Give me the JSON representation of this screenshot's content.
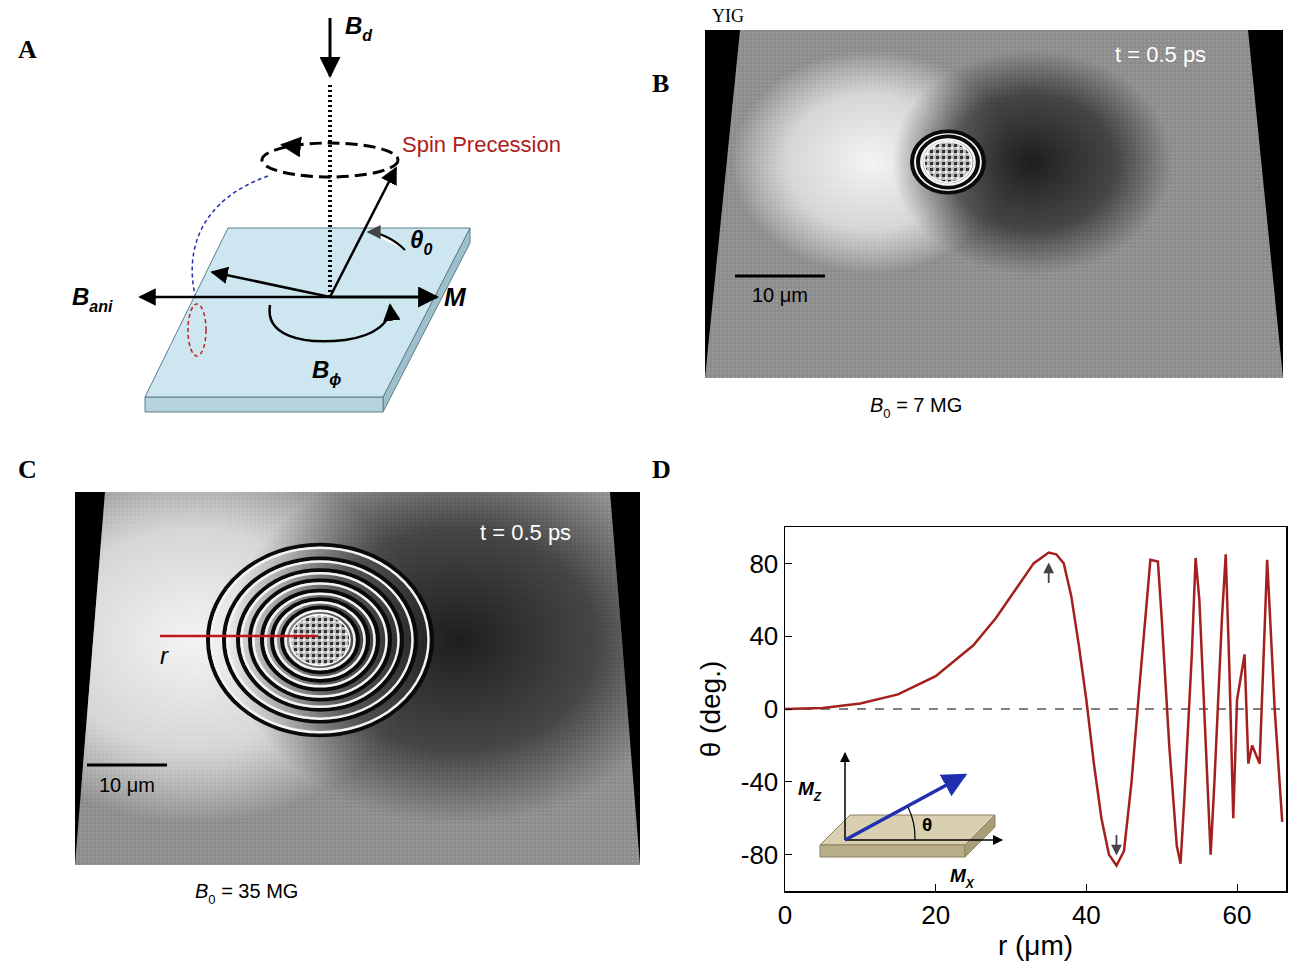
{
  "panels": {
    "A": {
      "label": "A",
      "B_d": {
        "main": "B",
        "sub": "d"
      },
      "precession": "Spin  Precession",
      "theta0": {
        "main": "θ",
        "sub": "0"
      },
      "M": "M",
      "B_ani": {
        "main": "B",
        "sub": "ani"
      },
      "B_phi": {
        "main": "B",
        "sub": "ϕ"
      }
    },
    "B": {
      "label": "B",
      "material": "YIG",
      "time": "t = 0.5 ps",
      "scale_bar": "10 μm",
      "field": {
        "main": "B",
        "sub": "0",
        "rest": " = 7 MG"
      }
    },
    "C": {
      "label": "C",
      "time": "t = 0.5 ps",
      "scale_bar": "10 μm",
      "field": {
        "main": "B",
        "sub": "0",
        "rest": " = 35 MG"
      },
      "radius_label": "r"
    }
  },
  "chart_data": {
    "label": "D",
    "type": "line",
    "color": "#a3201f",
    "grid": false,
    "x_label": "r (μm)",
    "y_label": "θ (deg.)",
    "x": [
      0,
      5,
      10,
      15,
      20,
      25,
      28,
      31,
      33,
      35,
      36,
      37,
      38,
      39,
      40,
      41,
      42,
      43,
      44,
      45,
      46,
      47,
      48,
      48.5,
      49.5,
      50,
      51,
      52,
      52.5,
      53,
      54,
      54.5,
      55,
      56,
      56.5,
      57,
      58,
      58.5,
      59,
      59.5,
      60,
      61,
      61.5,
      62,
      63,
      64,
      65,
      66
    ],
    "values": [
      0,
      0.5,
      3,
      8,
      18,
      35,
      50,
      68,
      80,
      86,
      85,
      80,
      62,
      35,
      5,
      -30,
      -60,
      -80,
      -86,
      -78,
      -40,
      10,
      60,
      82,
      81,
      50,
      -20,
      -75,
      -85,
      -50,
      30,
      83,
      60,
      -30,
      -80,
      -40,
      50,
      85,
      20,
      -60,
      5,
      30,
      -30,
      -20,
      -30,
      82,
      0,
      -62
    ],
    "xlim": [
      0,
      66.5
    ],
    "ylim": [
      -100,
      100
    ],
    "xticks": [
      0,
      20,
      40,
      60
    ],
    "yticks": [
      -80,
      -40,
      0,
      40,
      80
    ],
    "inset": {
      "z": {
        "main": "M",
        "sub": "Z"
      },
      "x": {
        "main": "M",
        "sub": "X"
      },
      "angle": "θ"
    }
  }
}
